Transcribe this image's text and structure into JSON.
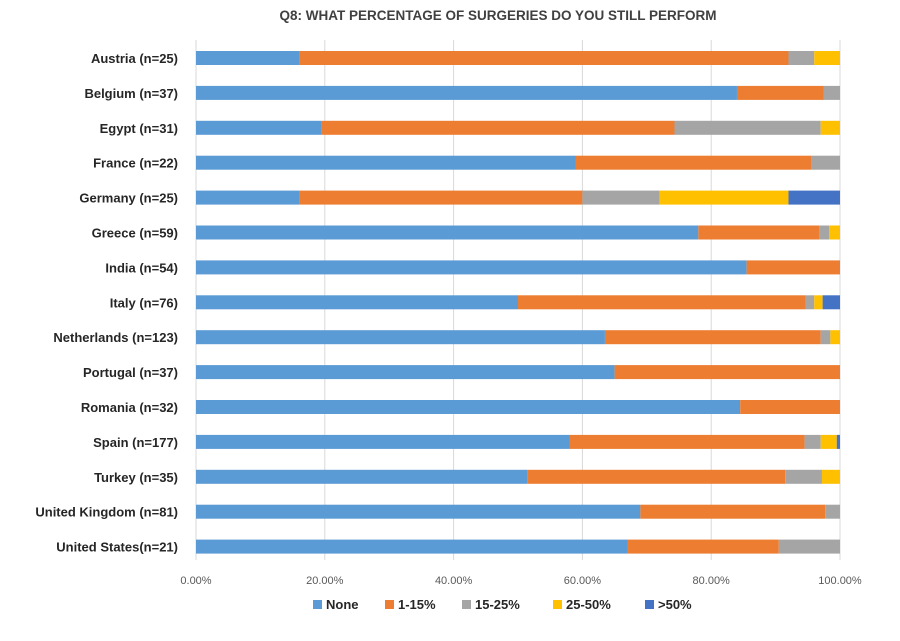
{
  "chart_data": {
    "type": "bar",
    "orientation": "horizontal",
    "stacked": true,
    "title": "Q8: WHAT PERCENTAGE OF SURGERIES DO YOU STILL PERFORM",
    "categories": [
      "Austria (n=25)",
      "Belgium (n=37)",
      "Egypt (n=31)",
      "France (n=22)",
      "Germany (n=25)",
      "Greece (n=59)",
      "India (n=54)",
      "Italy (n=76)",
      "Netherlands (n=123)",
      "Portugal (n=37)",
      "Romania (n=32)",
      "Spain (n=177)",
      "Turkey (n=35)",
      "United Kingdom (n=81)",
      "United States(n=21)"
    ],
    "series": [
      {
        "name": "None",
        "color": "#5B9BD5",
        "values": [
          16,
          84,
          19.5,
          59,
          16,
          78,
          85.5,
          50,
          63.5,
          65,
          84.5,
          58,
          51.5,
          69,
          67
        ]
      },
      {
        "name": "1-15%",
        "color": "#ED7D31",
        "values": [
          76,
          13.5,
          54.8,
          36.5,
          44,
          18.8,
          14.5,
          44.7,
          33.5,
          35,
          15.5,
          36.5,
          40,
          28.7,
          23.5
        ]
      },
      {
        "name": "15-25%",
        "color": "#A5A5A5",
        "values": [
          4,
          2.5,
          22.7,
          4.5,
          12,
          1.5,
          0,
          1.3,
          1.5,
          0,
          0,
          2.5,
          5.7,
          2.3,
          9.5
        ]
      },
      {
        "name": "25-50%",
        "color": "#FFC000",
        "values": [
          4,
          0,
          3,
          0,
          20,
          1.7,
          0,
          1.3,
          1.5,
          0,
          0,
          2.5,
          2.8,
          0,
          0
        ]
      },
      {
        "name": ">50%",
        "color": "#4472C4",
        "values": [
          0,
          0,
          0,
          0,
          8,
          0,
          0,
          2.7,
          0,
          0,
          0,
          0.5,
          0,
          0,
          0
        ]
      }
    ],
    "x_ticks": [
      "0.00%",
      "20.00%",
      "40.00%",
      "60.00%",
      "80.00%",
      "100.00%"
    ],
    "xlim": [
      0,
      100
    ],
    "grid": true,
    "legend_position": "bottom"
  }
}
